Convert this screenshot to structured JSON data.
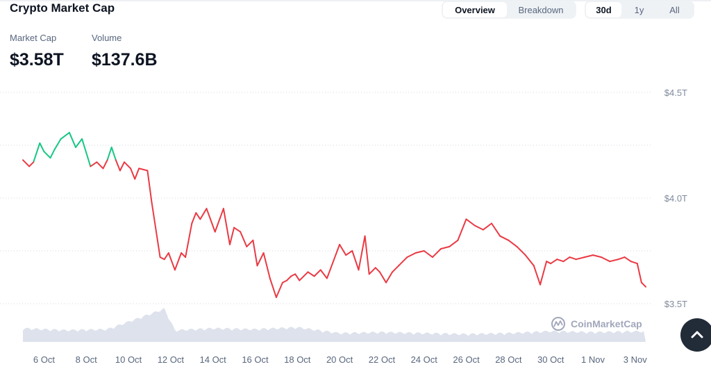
{
  "header": {
    "title": "Crypto Market Cap",
    "view_tabs": [
      {
        "label": "Overview",
        "active": true
      },
      {
        "label": "Breakdown",
        "active": false
      }
    ],
    "range_tabs": [
      {
        "label": "30d",
        "active": true
      },
      {
        "label": "1y",
        "active": false
      },
      {
        "label": "All",
        "active": false
      }
    ]
  },
  "stats": {
    "market_cap_label": "Market Cap",
    "market_cap_value": "$3.58T",
    "volume_label": "Volume",
    "volume_value": "$137.6B"
  },
  "watermark": "CoinMarketCap",
  "colors": {
    "up": "#16c784",
    "down": "#ea3943",
    "grid": "#d0d5dd",
    "axis_text": "#808a9d",
    "volume": "#cfd6e4"
  },
  "scroll_top_icon": "chevron-up-icon",
  "chart_data": {
    "type": "line",
    "title": "",
    "xlabel": "",
    "ylabel": "",
    "ylim": [
      3.5,
      4.5
    ],
    "yticks": [
      3.5,
      4.0,
      4.5
    ],
    "ytick_labels": [
      "$3.5T",
      "$4.0T",
      "$4.5T"
    ],
    "xticks": [
      "6 Oct",
      "8 Oct",
      "10 Oct",
      "12 Oct",
      "14 Oct",
      "16 Oct",
      "18 Oct",
      "20 Oct",
      "22 Oct",
      "24 Oct",
      "26 Oct",
      "28 Oct",
      "30 Oct",
      "1 Nov",
      "3 Nov"
    ],
    "xtick_days": [
      1,
      3,
      5,
      7,
      9,
      11,
      13,
      15,
      17,
      19,
      21,
      23,
      25,
      27,
      29
    ],
    "x_range_days": [
      0,
      29.5
    ],
    "grid": true,
    "baseline": 4.19,
    "series": [
      {
        "day": [
          0,
          0.3,
          0.5,
          0.8,
          1.0,
          1.3,
          1.5,
          1.8,
          2.2,
          2.5,
          2.8,
          3.2,
          3.5,
          3.8,
          4.0,
          4.2,
          4.4,
          4.6,
          4.8,
          5.1,
          5.3,
          5.5,
          5.9,
          6.1,
          6.5,
          6.7,
          6.9,
          7.2,
          7.5,
          7.7,
          8.0,
          8.2,
          8.4,
          8.7,
          9.1,
          9.5,
          9.8,
          10.0,
          10.3,
          10.6,
          10.9,
          11.1,
          11.4,
          11.7,
          12.0,
          12.3,
          12.5,
          12.7,
          12.9,
          13.1,
          13.5,
          13.8,
          14.1,
          14.4,
          14.7,
          15.0,
          15.3,
          15.6,
          15.9,
          16.2,
          16.4,
          16.7,
          16.9,
          17.2,
          17.5,
          17.8,
          18.2,
          18.6,
          19.0,
          19.4,
          19.8,
          20.2,
          20.6,
          21.0,
          21.4,
          21.8,
          22.2,
          22.6,
          23.0,
          23.4,
          23.8,
          24.2,
          24.5,
          24.8,
          25.0,
          25.3,
          25.6,
          25.9,
          26.2,
          26.6,
          27.0,
          27.4,
          27.8,
          28.2,
          28.5,
          28.8,
          29.1,
          29.3,
          29.5
        ],
        "value": [
          4.18,
          4.15,
          4.17,
          4.26,
          4.22,
          4.19,
          4.23,
          4.28,
          4.31,
          4.24,
          4.28,
          4.15,
          4.17,
          4.14,
          4.18,
          4.24,
          4.18,
          4.13,
          4.17,
          4.14,
          4.09,
          4.14,
          4.13,
          3.98,
          3.72,
          3.71,
          3.74,
          3.66,
          3.74,
          3.72,
          3.88,
          3.93,
          3.9,
          3.95,
          3.84,
          3.95,
          3.78,
          3.86,
          3.84,
          3.77,
          3.8,
          3.68,
          3.74,
          3.62,
          3.53,
          3.6,
          3.61,
          3.63,
          3.64,
          3.61,
          3.65,
          3.63,
          3.66,
          3.62,
          3.7,
          3.78,
          3.73,
          3.75,
          3.66,
          3.82,
          3.64,
          3.67,
          3.65,
          3.6,
          3.65,
          3.68,
          3.72,
          3.74,
          3.75,
          3.72,
          3.76,
          3.77,
          3.8,
          3.9,
          3.87,
          3.85,
          3.88,
          3.82,
          3.8,
          3.77,
          3.73,
          3.68,
          3.59,
          3.7,
          3.69,
          3.71,
          3.7,
          3.72,
          3.71,
          3.72,
          3.73,
          3.72,
          3.7,
          3.71,
          3.72,
          3.7,
          3.69,
          3.6,
          3.58
        ]
      }
    ]
  }
}
